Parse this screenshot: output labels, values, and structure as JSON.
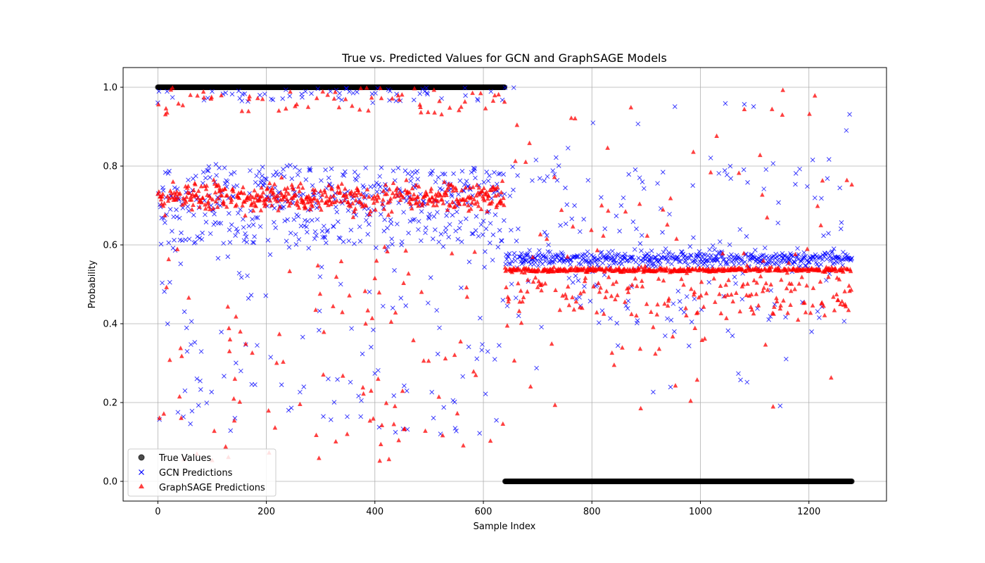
{
  "chart_data": {
    "type": "scatter",
    "title": "True vs. Predicted Values for GCN and GraphSAGE Models",
    "xlabel": "Sample Index",
    "ylabel": "Probability",
    "xlim": [
      -64,
      1343
    ],
    "ylim": [
      -0.05,
      1.05
    ],
    "xticks": [
      0,
      200,
      400,
      600,
      800,
      1000,
      1200
    ],
    "yticks": [
      0.0,
      0.2,
      0.4,
      0.6,
      0.8,
      1.0
    ],
    "xtick_labels": [
      "0",
      "200",
      "400",
      "600",
      "800",
      "1000",
      "1200"
    ],
    "ytick_labels": [
      "0.0",
      "0.2",
      "0.4",
      "0.6",
      "0.8",
      "1.0"
    ],
    "grid": true,
    "legend_position": "lower-left",
    "n_samples": 1280,
    "positive_count": 640,
    "series": [
      {
        "name": "True Values",
        "marker": "circle",
        "color": "#000000",
        "description_values": "1.0 for samples 0-639, 0.0 for samples 640-1279"
      },
      {
        "name": "GCN Predictions",
        "marker": "x",
        "color": "#0000ff",
        "summary": {
          "positive_range": {
            "x": [
              0,
              639
            ],
            "main_cluster_y": [
              0.6,
              0.8
            ],
            "high_cluster_y": 1.0,
            "scattered_low_y": [
              0.12,
              0.6
            ]
          },
          "negative_range": {
            "x": [
              640,
              1279
            ],
            "main_cluster_y": [
              0.54,
              0.62
            ],
            "scattered_y": [
              0.17,
              1.0
            ]
          }
        }
      },
      {
        "name": "GraphSAGE Predictions",
        "marker": "triangle",
        "color": "#ff0000",
        "summary": {
          "positive_range": {
            "x": [
              0,
              639
            ],
            "main_cluster_y": [
              0.65,
              0.79
            ],
            "high_cluster_y": [
              0.93,
              1.0
            ],
            "scattered_low_y": [
              0.05,
              0.6
            ]
          },
          "negative_range": {
            "x": [
              640,
              1279
            ],
            "main_cluster_y": [
              0.53,
              0.55
            ],
            "lower_band_y": [
              0.42,
              0.52
            ],
            "scattered_y": [
              0.16,
              1.0
            ]
          }
        }
      }
    ]
  },
  "legend": {
    "true_label": "True Values",
    "gcn_label": "GCN Predictions",
    "sage_label": "GraphSAGE Predictions"
  },
  "colors": {
    "true": "#000000",
    "gcn": "#0000ff",
    "sage": "#ff0000",
    "grid": "#b0b0b0"
  }
}
